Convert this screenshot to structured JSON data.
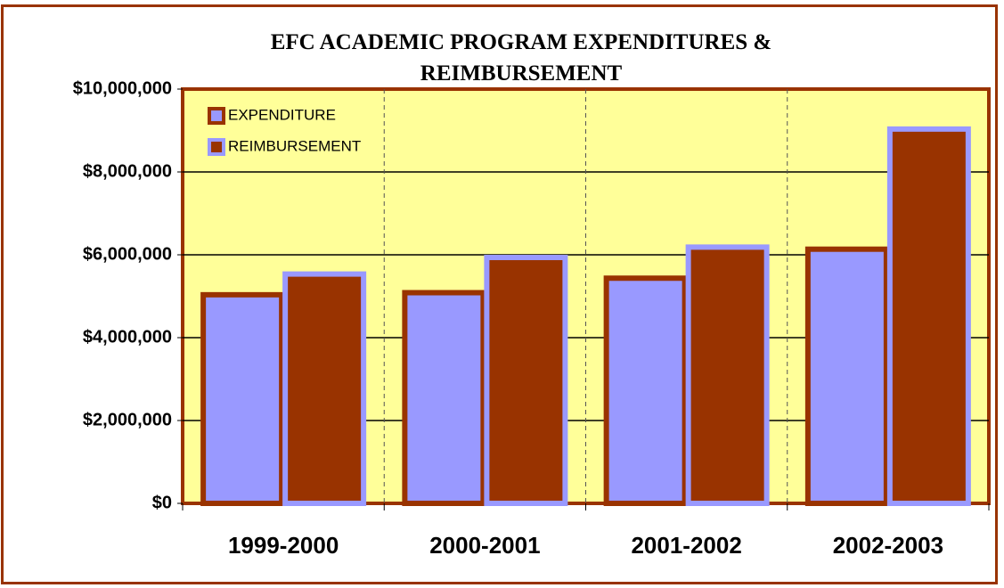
{
  "chart_data": {
    "type": "bar",
    "title": "EFC ACADEMIC PROGRAM EXPENDITURES & REIMBURSEMENT",
    "categories": [
      "1999-2000",
      "2000-2001",
      "2001-2002",
      "2002-2003"
    ],
    "series": [
      {
        "name": "EXPENDITURE",
        "color": "#9999ff",
        "border": "#993300",
        "values": [
          5100000,
          5150000,
          5500000,
          6200000
        ]
      },
      {
        "name": "REIMBURSEMENT",
        "color": "#993300",
        "border": "#9999ff",
        "values": [
          5600000,
          6000000,
          6250000,
          9100000
        ]
      }
    ],
    "ylim": [
      0,
      10000000
    ],
    "yticks": [
      {
        "value": 0,
        "label": "$0"
      },
      {
        "value": 2000000,
        "label": "$2,000,000"
      },
      {
        "value": 4000000,
        "label": "$4,000,000"
      },
      {
        "value": 6000000,
        "label": "$6,000,000"
      },
      {
        "value": 8000000,
        "label": "$8,000,000"
      },
      {
        "value": 10000000,
        "label": "$10,000,000"
      }
    ],
    "grid": true,
    "legend": "top-left"
  }
}
